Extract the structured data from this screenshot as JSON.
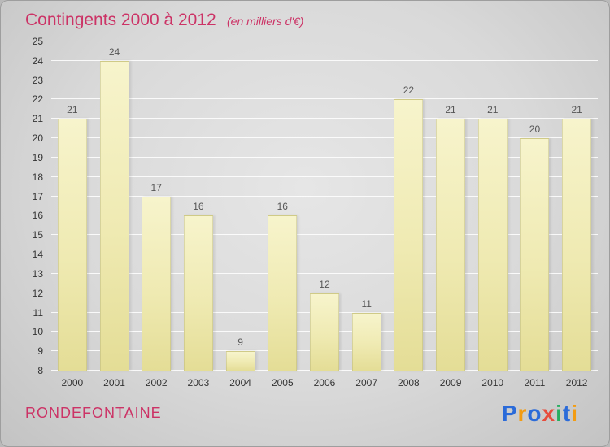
{
  "header": {
    "title": "Contingents 2000 à 2012",
    "subtitle": "(en milliers d'€)",
    "accent_color": "#cc3366"
  },
  "footer": {
    "location": "RONDEFONTAINE",
    "logo_letters": [
      {
        "ch": "P",
        "color": "#2b6bd9"
      },
      {
        "ch": "r",
        "color": "#f39c12"
      },
      {
        "ch": "o",
        "color": "#2b6bd9"
      },
      {
        "ch": "x",
        "color": "#e74c3c"
      },
      {
        "ch": "i",
        "color": "#27ae60"
      },
      {
        "ch": "t",
        "color": "#2b6bd9"
      },
      {
        "ch": "i",
        "color": "#f39c12"
      }
    ]
  },
  "chart_data": {
    "type": "bar",
    "title": "Contingents 2000 à 2012",
    "subtitle": "(en milliers d'€)",
    "categories": [
      "2000",
      "2001",
      "2002",
      "2003",
      "2004",
      "2005",
      "2006",
      "2007",
      "2008",
      "2009",
      "2010",
      "2011",
      "2012"
    ],
    "values": [
      21,
      24,
      17,
      16,
      9,
      16,
      12,
      11,
      22,
      21,
      21,
      20,
      21
    ],
    "xlabel": "",
    "ylabel": "",
    "ylim": [
      8,
      25
    ],
    "ytick_step": 1,
    "grid": true,
    "legend": "none",
    "bar_color": "#efeab2",
    "gridline_color": "#ffffff",
    "background_color": "#d9d9d9"
  }
}
